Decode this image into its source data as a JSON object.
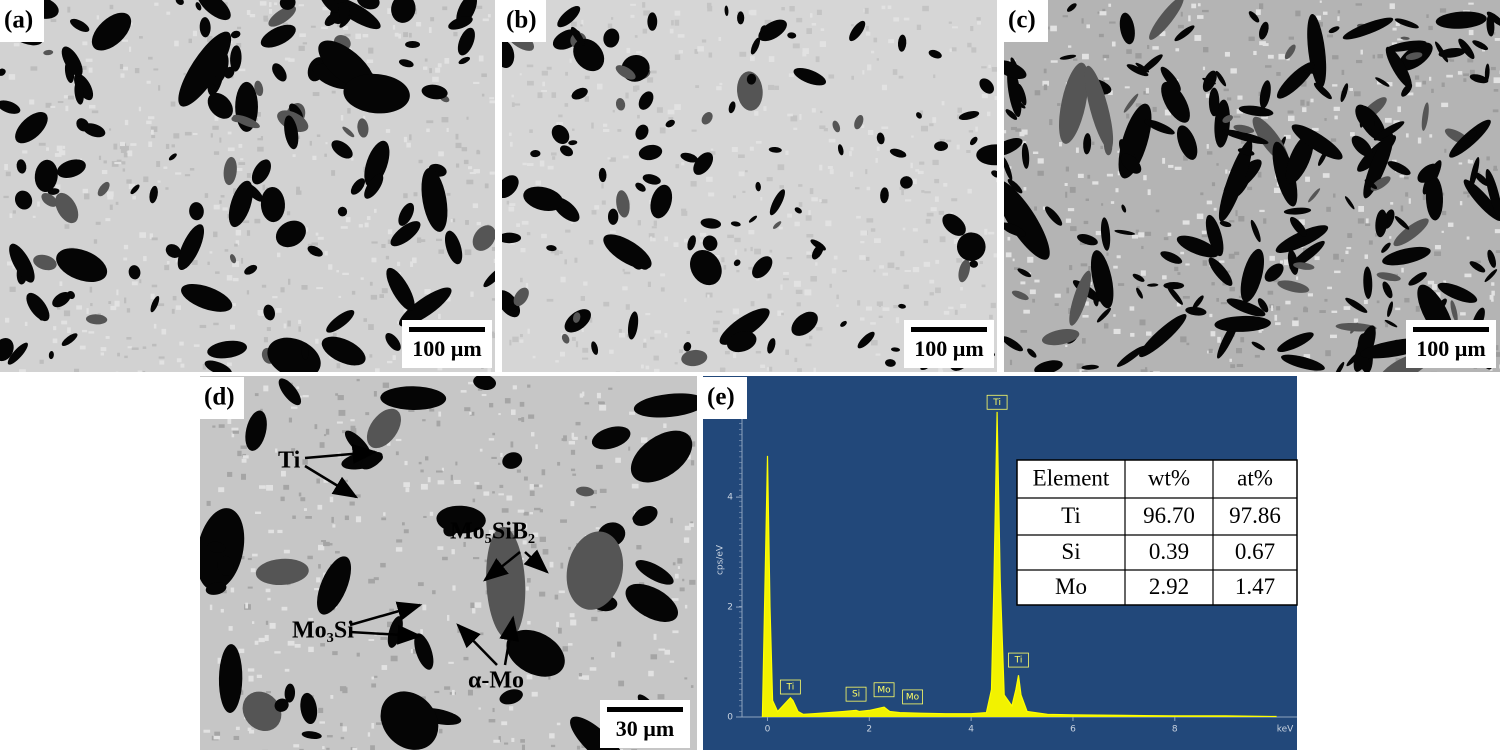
{
  "panels": [
    {
      "label": "(a)",
      "scale_bar": "100 µm"
    },
    {
      "label": "(b)",
      "scale_bar": "100 µm"
    },
    {
      "label": "(c)",
      "scale_bar": "100 µm"
    },
    {
      "label": "(d)",
      "scale_bar": "30 µm",
      "annotations": [
        "Ti",
        "Mo₅SiB₂",
        "Mo₃Si",
        "α-Mo"
      ]
    },
    {
      "label": "(e)"
    }
  ],
  "spectrum": {
    "x_label": "keV",
    "y_label": "cps/eV",
    "xlim": [
      -0.5,
      10.4
    ],
    "ylim": [
      0,
      6.04
    ],
    "xticks": [
      0,
      2,
      4,
      6,
      8
    ],
    "yticks": [
      0,
      2,
      4
    ],
    "x": [
      -0.1,
      0,
      0.05,
      0.1,
      0.2,
      0.3,
      0.4,
      0.45,
      0.5,
      0.6,
      0.7,
      0.9,
      1.2,
      1.5,
      1.74,
      1.8,
      2.0,
      2.29,
      2.4,
      2.6,
      3.0,
      3.5,
      4.0,
      4.3,
      4.4,
      4.45,
      4.51,
      4.57,
      4.65,
      4.8,
      4.88,
      4.93,
      4.98,
      5.1,
      5.5,
      6,
      7,
      8,
      9,
      10
    ],
    "y": [
      0,
      4.75,
      2,
      0.3,
      0.1,
      0.2,
      0.3,
      0.35,
      0.3,
      0.1,
      0.05,
      0.06,
      0.08,
      0.1,
      0.12,
      0.1,
      0.12,
      0.18,
      0.1,
      0.08,
      0.07,
      0.06,
      0.06,
      0.08,
      0.5,
      2.5,
      5.55,
      2.5,
      0.4,
      0.2,
      0.5,
      0.76,
      0.4,
      0.1,
      0.05,
      0.04,
      0.03,
      0.02,
      0.02,
      0.01
    ],
    "peak_labels": [
      {
        "text": "Ti",
        "x": 0.45,
        "y": 0.4
      },
      {
        "text": "Si",
        "x": 1.74,
        "y": 0.27
      },
      {
        "text": "Mo",
        "x": 2.29,
        "y": 0.35
      },
      {
        "text": "Mo",
        "x": 2.85,
        "y": 0.22
      },
      {
        "text": "Ti",
        "x": 4.51,
        "y": 5.58
      },
      {
        "text": "Ti",
        "x": 4.93,
        "y": 0.89
      }
    ]
  },
  "table": {
    "header": [
      "Element",
      "wt%",
      "at%"
    ],
    "rows": [
      [
        "Ti",
        "96.70",
        "97.86"
      ],
      [
        "Si",
        "0.39",
        "0.67"
      ],
      [
        "Mo",
        "2.92",
        "1.47"
      ]
    ]
  }
}
